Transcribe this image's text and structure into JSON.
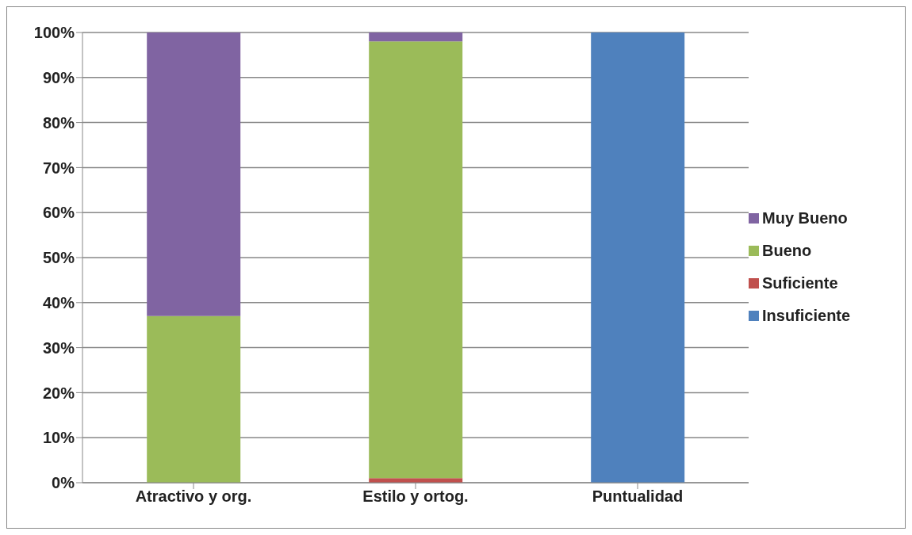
{
  "chart_data": {
    "type": "bar",
    "stacked": true,
    "categories": [
      "Atractivo y org.",
      "Estilo y ortog.",
      "Puntualidad"
    ],
    "series": [
      {
        "name": "Insuficiente",
        "color": "#4f81bd",
        "values": [
          0,
          0,
          100
        ]
      },
      {
        "name": "Suficiente",
        "color": "#c0504d",
        "values": [
          0,
          1,
          0
        ]
      },
      {
        "name": "Bueno",
        "color": "#9bbb59",
        "values": [
          37,
          97,
          0
        ]
      },
      {
        "name": "Muy Bueno",
        "color": "#8064a2",
        "values": [
          63,
          2,
          0
        ]
      }
    ],
    "ylim": [
      0,
      100
    ],
    "yticks": [
      {
        "value": 0,
        "label": "0%"
      },
      {
        "value": 10,
        "label": "10%"
      },
      {
        "value": 20,
        "label": "20%"
      },
      {
        "value": 30,
        "label": "30%"
      },
      {
        "value": 40,
        "label": "40%"
      },
      {
        "value": 50,
        "label": "50%"
      },
      {
        "value": 60,
        "label": "60%"
      },
      {
        "value": 70,
        "label": "70%"
      },
      {
        "value": 80,
        "label": "80%"
      },
      {
        "value": 90,
        "label": "90%"
      },
      {
        "value": 100,
        "label": "100%"
      }
    ],
    "grid": "y",
    "legend": "right"
  }
}
